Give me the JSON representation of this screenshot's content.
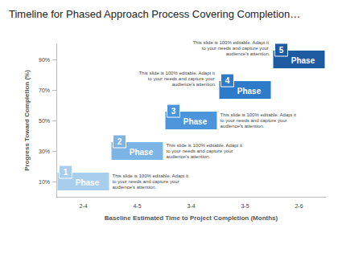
{
  "chart_data": {
    "type": "timeline",
    "title": "Timeline for Phased Approach Process Covering Completion…",
    "xlabel": "Baseline Estimated Time to Project Completion (Months)",
    "ylabel": "Progress Toward Completion (%)",
    "categories": [
      "2-4",
      "4-5",
      "3-4",
      "3-5",
      "2-6"
    ],
    "ylim": [
      0,
      100
    ],
    "yticks": [
      {
        "value": 10,
        "label": "10%"
      },
      {
        "value": 30,
        "label": "30%"
      },
      {
        "value": 50,
        "label": "50%"
      },
      {
        "value": 70,
        "label": "70%"
      },
      {
        "value": 90,
        "label": "90%"
      }
    ],
    "phases": [
      {
        "number": "1",
        "label": "Phase",
        "value": 10,
        "color": "#a9cdec",
        "description": "This slide is 100% editable. Adapt it to your needs and capture your audience's attention."
      },
      {
        "number": "2",
        "label": "Phase",
        "value": 30,
        "color": "#7db4e6",
        "description": "This slide is 100% editable. Adapt it to your needs and capture your audience's attention."
      },
      {
        "number": "3",
        "label": "Phase",
        "value": 50,
        "color": "#4d95da",
        "description": "This slide is 100% editable. Adapt it to your needs and capture your audience's attention."
      },
      {
        "number": "4",
        "label": "Phase",
        "value": 70,
        "color": "#2e7bc9",
        "description": "This slide is 100% editable. Adapt it to your needs and capture your audience's attention."
      },
      {
        "number": "5",
        "label": "Phase",
        "value": 90,
        "color": "#1d5a9f",
        "description": "This slide is 100% editable. Adapt it to your needs and capture your audience's attention."
      }
    ]
  }
}
